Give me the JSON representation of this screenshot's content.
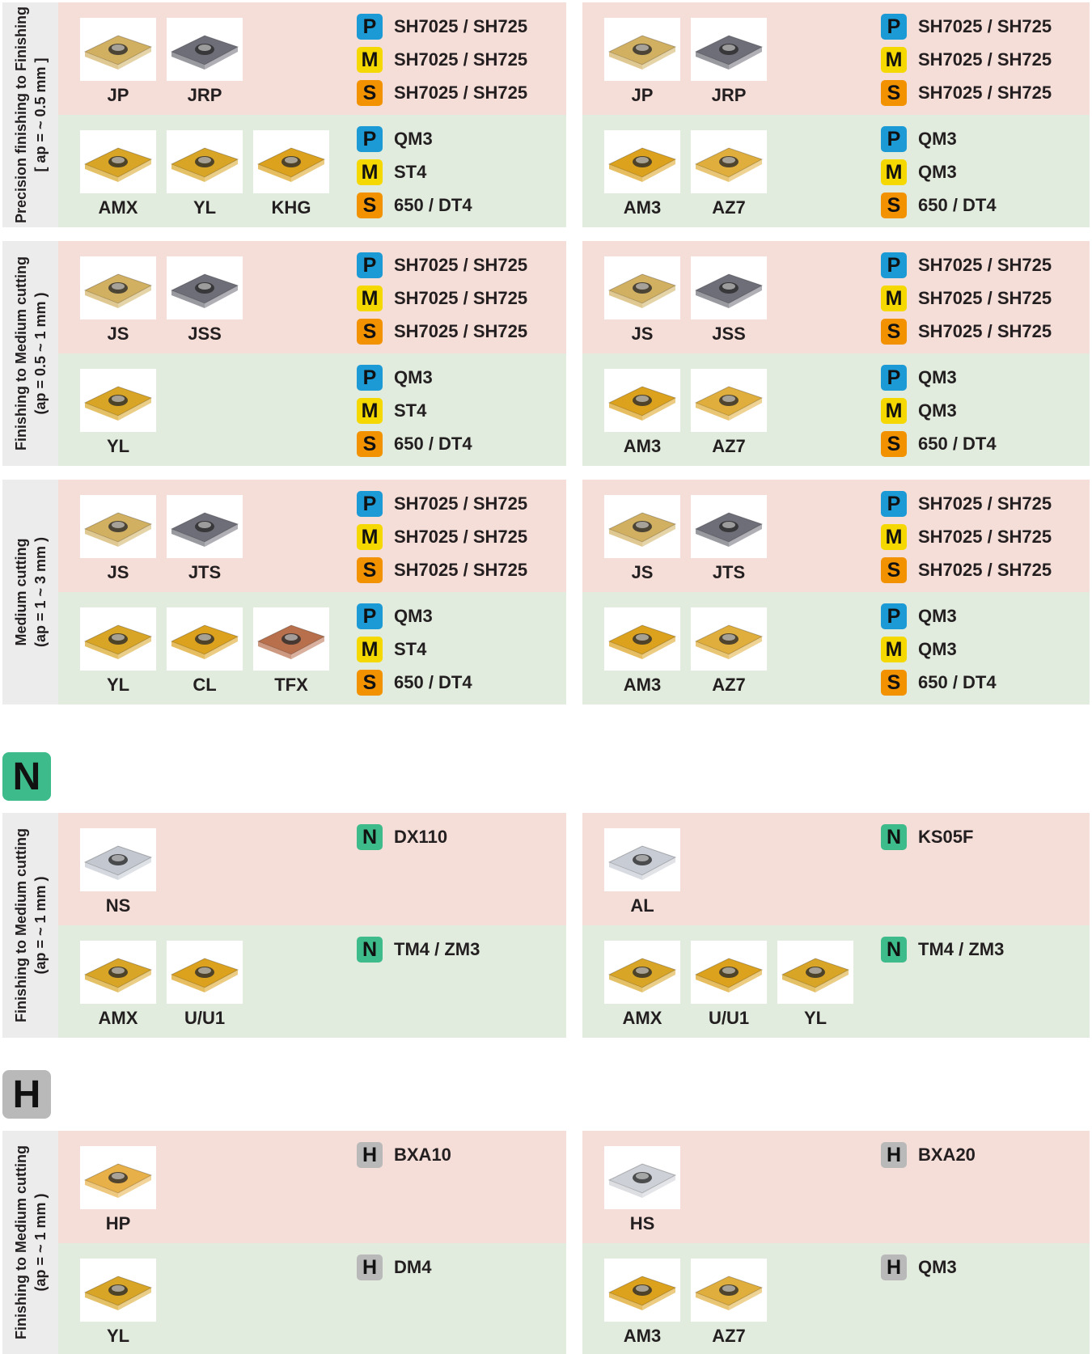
{
  "iso_colors": {
    "P": "#1b9ad6",
    "M": "#f5d800",
    "S": "#f39200",
    "N": "#3dbb8a",
    "H": "#b9b9b9"
  },
  "groups": [
    {
      "label": "Precision finishing to Finishing",
      "range": "[ ap = ~ 0.5 mm ]",
      "panels": [
        {
          "rows": [
            {
              "inserts": [
                {
                  "name": "JP",
                  "color": "#d2b062"
                },
                {
                  "name": "JRP",
                  "color": "#6d6e78"
                }
              ],
              "grades": [
                {
                  "iso": "P",
                  "grade": "SH7025 / SH725"
                },
                {
                  "iso": "M",
                  "grade": "SH7025 / SH725"
                },
                {
                  "iso": "S",
                  "grade": "SH7025 / SH725"
                }
              ]
            },
            {
              "inserts": [
                {
                  "name": "AMX",
                  "color": "#d8a527"
                },
                {
                  "name": "YL",
                  "color": "#d8a527"
                },
                {
                  "name": "KHG",
                  "color": "#dca21e"
                }
              ],
              "grades": [
                {
                  "iso": "P",
                  "grade": "QM3"
                },
                {
                  "iso": "M",
                  "grade": "ST4"
                },
                {
                  "iso": "S",
                  "grade": "650 / DT4"
                }
              ]
            }
          ]
        },
        {
          "rows": [
            {
              "inserts": [
                {
                  "name": "JP",
                  "color": "#d2b062"
                },
                {
                  "name": "JRP",
                  "color": "#6d6e78"
                }
              ],
              "grades": [
                {
                  "iso": "P",
                  "grade": "SH7025 / SH725"
                },
                {
                  "iso": "M",
                  "grade": "SH7025 / SH725"
                },
                {
                  "iso": "S",
                  "grade": "SH7025 / SH725"
                }
              ]
            },
            {
              "inserts": [
                {
                  "name": "AM3",
                  "color": "#dca21e"
                },
                {
                  "name": "AZ7",
                  "color": "#e0ae3c"
                }
              ],
              "grades": [
                {
                  "iso": "P",
                  "grade": "QM3"
                },
                {
                  "iso": "M",
                  "grade": "QM3"
                },
                {
                  "iso": "S",
                  "grade": "650 / DT4"
                }
              ]
            }
          ]
        }
      ]
    },
    {
      "label": "Finishing to Medium cutting",
      "range": "(ap = 0.5 ~ 1 mm )",
      "panels": [
        {
          "rows": [
            {
              "inserts": [
                {
                  "name": "JS",
                  "color": "#d2b062"
                },
                {
                  "name": "JSS",
                  "color": "#6d6e78"
                }
              ],
              "grades": [
                {
                  "iso": "P",
                  "grade": "SH7025 / SH725"
                },
                {
                  "iso": "M",
                  "grade": "SH7025 / SH725"
                },
                {
                  "iso": "S",
                  "grade": "SH7025 / SH725"
                }
              ]
            },
            {
              "inserts": [
                {
                  "name": "YL",
                  "color": "#d8a527"
                }
              ],
              "grades": [
                {
                  "iso": "P",
                  "grade": "QM3"
                },
                {
                  "iso": "M",
                  "grade": "ST4"
                },
                {
                  "iso": "S",
                  "grade": "650 / DT4"
                }
              ]
            }
          ]
        },
        {
          "rows": [
            {
              "inserts": [
                {
                  "name": "JS",
                  "color": "#d2b062"
                },
                {
                  "name": "JSS",
                  "color": "#6d6e78"
                }
              ],
              "grades": [
                {
                  "iso": "P",
                  "grade": "SH7025 / SH725"
                },
                {
                  "iso": "M",
                  "grade": "SH7025 / SH725"
                },
                {
                  "iso": "S",
                  "grade": "SH7025 / SH725"
                }
              ]
            },
            {
              "inserts": [
                {
                  "name": "AM3",
                  "color": "#dca21e"
                },
                {
                  "name": "AZ7",
                  "color": "#e0ae3c"
                }
              ],
              "grades": [
                {
                  "iso": "P",
                  "grade": "QM3"
                },
                {
                  "iso": "M",
                  "grade": "QM3"
                },
                {
                  "iso": "S",
                  "grade": "650 / DT4"
                }
              ]
            }
          ]
        }
      ]
    },
    {
      "label": "Medium cutting",
      "range": "(ap = 1 ~ 3 mm )",
      "panels": [
        {
          "rows": [
            {
              "inserts": [
                {
                  "name": "JS",
                  "color": "#d2b062"
                },
                {
                  "name": "JTS",
                  "color": "#6d6e78"
                }
              ],
              "grades": [
                {
                  "iso": "P",
                  "grade": "SH7025 / SH725"
                },
                {
                  "iso": "M",
                  "grade": "SH7025 / SH725"
                },
                {
                  "iso": "S",
                  "grade": "SH7025 / SH725"
                }
              ]
            },
            {
              "inserts": [
                {
                  "name": "YL",
                  "color": "#d8a527"
                },
                {
                  "name": "CL",
                  "color": "#dca21e"
                },
                {
                  "name": "TFX",
                  "color": "#b86f4c"
                }
              ],
              "grades": [
                {
                  "iso": "P",
                  "grade": "QM3"
                },
                {
                  "iso": "M",
                  "grade": "ST4"
                },
                {
                  "iso": "S",
                  "grade": "650 / DT4"
                }
              ]
            }
          ]
        },
        {
          "rows": [
            {
              "inserts": [
                {
                  "name": "JS",
                  "color": "#d2b062"
                },
                {
                  "name": "JTS",
                  "color": "#6d6e78"
                }
              ],
              "grades": [
                {
                  "iso": "P",
                  "grade": "SH7025 / SH725"
                },
                {
                  "iso": "M",
                  "grade": "SH7025 / SH725"
                },
                {
                  "iso": "S",
                  "grade": "SH7025 / SH725"
                }
              ]
            },
            {
              "inserts": [
                {
                  "name": "AM3",
                  "color": "#dca21e"
                },
                {
                  "name": "AZ7",
                  "color": "#e0ae3c"
                }
              ],
              "grades": [
                {
                  "iso": "P",
                  "grade": "QM3"
                },
                {
                  "iso": "M",
                  "grade": "QM3"
                },
                {
                  "iso": "S",
                  "grade": "650 / DT4"
                }
              ]
            }
          ]
        }
      ]
    },
    {
      "header": "N",
      "label": "Finishing to Medium cutting",
      "range": "(ap = ~ 1 mm )",
      "panels": [
        {
          "rows": [
            {
              "inserts": [
                {
                  "name": "NS",
                  "color": "#c3c8d0"
                }
              ],
              "grades": [
                {
                  "iso": "N",
                  "grade": "DX110"
                }
              ]
            },
            {
              "inserts": [
                {
                  "name": "AMX",
                  "color": "#d8a527"
                },
                {
                  "name": "U/U1",
                  "color": "#dca21e"
                }
              ],
              "grades": [
                {
                  "iso": "N",
                  "grade": "TM4 / ZM3"
                }
              ]
            }
          ]
        },
        {
          "rows": [
            {
              "inserts": [
                {
                  "name": "AL",
                  "color": "#c8ccd4"
                }
              ],
              "grades": [
                {
                  "iso": "N",
                  "grade": "KS05F"
                }
              ]
            },
            {
              "inserts": [
                {
                  "name": "AMX",
                  "color": "#d8a527"
                },
                {
                  "name": "U/U1",
                  "color": "#dca21e"
                },
                {
                  "name": "YL",
                  "color": "#d8a527"
                }
              ],
              "grades": [
                {
                  "iso": "N",
                  "grade": "TM4 / ZM3"
                }
              ]
            }
          ]
        }
      ]
    },
    {
      "header": "H",
      "label": "Finishing to Medium cutting",
      "range": "(ap = ~ 1 mm )",
      "panels": [
        {
          "rows": [
            {
              "inserts": [
                {
                  "name": "HP",
                  "color": "#e8b048"
                }
              ],
              "grades": [
                {
                  "iso": "H",
                  "grade": "BXA10"
                }
              ]
            },
            {
              "inserts": [
                {
                  "name": "YL",
                  "color": "#d8a527"
                }
              ],
              "grades": [
                {
                  "iso": "H",
                  "grade": "DM4"
                }
              ]
            }
          ]
        },
        {
          "rows": [
            {
              "inserts": [
                {
                  "name": "HS",
                  "color": "#cdd0d6"
                }
              ],
              "grades": [
                {
                  "iso": "H",
                  "grade": "BXA20"
                }
              ]
            },
            {
              "inserts": [
                {
                  "name": "AM3",
                  "color": "#dca21e"
                },
                {
                  "name": "AZ7",
                  "color": "#e0ae3c"
                }
              ],
              "grades": [
                {
                  "iso": "H",
                  "grade": "QM3"
                }
              ]
            }
          ]
        }
      ]
    }
  ]
}
